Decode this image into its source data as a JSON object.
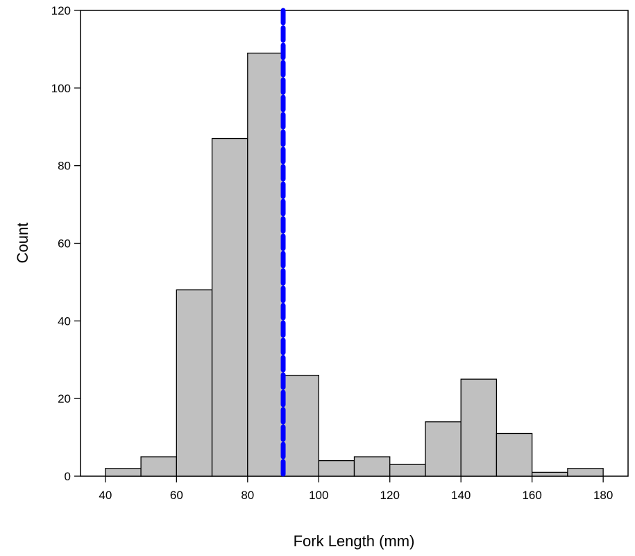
{
  "chart_data": {
    "type": "bar",
    "subtype": "histogram",
    "title": "",
    "xlabel": "Fork Length (mm)",
    "ylabel": "Count",
    "xlim": [
      33,
      187
    ],
    "ylim": [
      0,
      120
    ],
    "xticks": [
      40,
      60,
      80,
      100,
      120,
      140,
      160,
      180
    ],
    "yticks": [
      0,
      20,
      40,
      60,
      80,
      100,
      120
    ],
    "grid": false,
    "legend": "none",
    "bins": [
      {
        "x0": 40,
        "x1": 50,
        "count": 2
      },
      {
        "x0": 50,
        "x1": 60,
        "count": 5
      },
      {
        "x0": 60,
        "x1": 70,
        "count": 48
      },
      {
        "x0": 70,
        "x1": 80,
        "count": 87
      },
      {
        "x0": 80,
        "x1": 90,
        "count": 109
      },
      {
        "x0": 90,
        "x1": 100,
        "count": 26
      },
      {
        "x0": 100,
        "x1": 110,
        "count": 4
      },
      {
        "x0": 110,
        "x1": 120,
        "count": 5
      },
      {
        "x0": 120,
        "x1": 130,
        "count": 3
      },
      {
        "x0": 130,
        "x1": 140,
        "count": 14
      },
      {
        "x0": 140,
        "x1": 150,
        "count": 25
      },
      {
        "x0": 150,
        "x1": 160,
        "count": 11
      },
      {
        "x0": 160,
        "x1": 170,
        "count": 1
      },
      {
        "x0": 170,
        "x1": 180,
        "count": 2
      }
    ],
    "reference_line": {
      "x": 90,
      "style": "dashed"
    },
    "colors": {
      "bar_fill": "#c0c0c0",
      "bar_stroke": "#000000",
      "reference_line": "#0000ff",
      "axis": "#000000"
    }
  }
}
